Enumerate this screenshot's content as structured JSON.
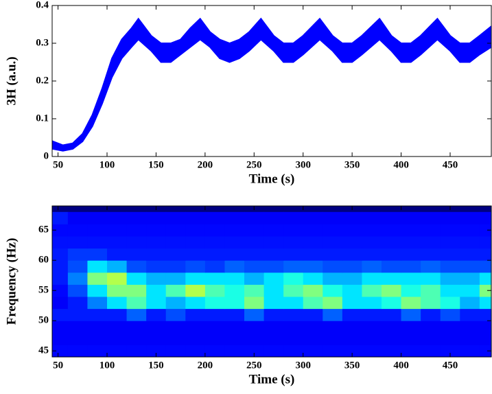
{
  "chart_data": [
    {
      "type": "band",
      "ylabel": "3H (a.u.)",
      "xlabel": "Time (s)",
      "color": "#0000ff",
      "x": [
        45,
        55,
        65,
        75,
        85,
        95,
        105,
        115,
        125,
        132,
        145,
        155,
        165,
        175,
        185,
        195,
        205,
        215,
        225,
        235,
        245,
        257,
        270,
        280,
        290,
        300,
        317,
        330,
        340,
        350,
        360,
        378,
        390,
        400,
        410,
        420,
        437,
        450,
        460,
        470,
        480,
        492
      ],
      "lower": [
        0.02,
        0.015,
        0.02,
        0.04,
        0.08,
        0.14,
        0.21,
        0.26,
        0.29,
        0.31,
        0.28,
        0.25,
        0.25,
        0.27,
        0.29,
        0.31,
        0.29,
        0.26,
        0.25,
        0.26,
        0.28,
        0.31,
        0.28,
        0.25,
        0.25,
        0.27,
        0.31,
        0.28,
        0.25,
        0.25,
        0.27,
        0.31,
        0.28,
        0.25,
        0.25,
        0.27,
        0.31,
        0.28,
        0.25,
        0.25,
        0.27,
        0.29
      ],
      "upper": [
        0.04,
        0.03,
        0.035,
        0.06,
        0.11,
        0.18,
        0.26,
        0.31,
        0.34,
        0.365,
        0.32,
        0.3,
        0.3,
        0.31,
        0.34,
        0.365,
        0.33,
        0.31,
        0.3,
        0.31,
        0.33,
        0.365,
        0.32,
        0.3,
        0.3,
        0.32,
        0.365,
        0.32,
        0.3,
        0.3,
        0.32,
        0.365,
        0.32,
        0.3,
        0.3,
        0.32,
        0.365,
        0.32,
        0.3,
        0.3,
        0.32,
        0.345
      ],
      "xlim": [
        44,
        492
      ],
      "ylim": [
        0,
        0.4
      ],
      "xticks": [
        50,
        100,
        150,
        200,
        250,
        300,
        350,
        400,
        450
      ],
      "yticks": [
        0,
        0.1,
        0.2,
        0.3,
        0.4
      ]
    },
    {
      "type": "heatmap",
      "ylabel": "Frequency (Hz)",
      "xlabel": "Time (s)",
      "colormap": "jet",
      "x": [
        50,
        70,
        90,
        110,
        130,
        150,
        170,
        190,
        210,
        230,
        250,
        270,
        290,
        310,
        330,
        350,
        370,
        390,
        410,
        430,
        450,
        470,
        490
      ],
      "y": [
        45,
        47,
        49,
        51,
        53,
        55,
        57,
        59,
        61,
        63,
        65,
        67
      ],
      "values": [
        [
          0.13,
          0.13,
          0.13,
          0.13,
          0.13,
          0.13,
          0.13,
          0.13,
          0.13,
          0.13,
          0.13,
          0.13,
          0.13,
          0.13,
          0.13,
          0.13,
          0.13,
          0.13,
          0.13,
          0.13,
          0.13,
          0.13,
          0.13
        ],
        [
          0.12,
          0.12,
          0.12,
          0.12,
          0.12,
          0.12,
          0.12,
          0.12,
          0.12,
          0.12,
          0.12,
          0.12,
          0.12,
          0.12,
          0.12,
          0.12,
          0.12,
          0.12,
          0.12,
          0.12,
          0.12,
          0.12,
          0.12
        ],
        [
          0.12,
          0.12,
          0.12,
          0.12,
          0.12,
          0.12,
          0.12,
          0.12,
          0.12,
          0.12,
          0.12,
          0.12,
          0.12,
          0.12,
          0.12,
          0.12,
          0.12,
          0.12,
          0.12,
          0.12,
          0.12,
          0.12,
          0.12
        ],
        [
          0.15,
          0.15,
          0.15,
          0.15,
          0.22,
          0.15,
          0.2,
          0.15,
          0.15,
          0.15,
          0.22,
          0.15,
          0.15,
          0.15,
          0.22,
          0.15,
          0.15,
          0.15,
          0.22,
          0.15,
          0.2,
          0.15,
          0.15
        ],
        [
          0.12,
          0.15,
          0.25,
          0.35,
          0.45,
          0.35,
          0.3,
          0.35,
          0.4,
          0.4,
          0.5,
          0.35,
          0.35,
          0.45,
          0.5,
          0.35,
          0.35,
          0.4,
          0.5,
          0.45,
          0.4,
          0.3,
          0.35
        ],
        [
          0.13,
          0.2,
          0.35,
          0.5,
          0.5,
          0.35,
          0.45,
          0.55,
          0.45,
          0.4,
          0.45,
          0.35,
          0.45,
          0.5,
          0.4,
          0.35,
          0.45,
          0.5,
          0.4,
          0.45,
          0.35,
          0.35,
          0.5
        ],
        [
          0.15,
          0.25,
          0.5,
          0.55,
          0.35,
          0.3,
          0.3,
          0.35,
          0.35,
          0.35,
          0.3,
          0.35,
          0.4,
          0.35,
          0.3,
          0.3,
          0.35,
          0.35,
          0.35,
          0.35,
          0.3,
          0.3,
          0.35
        ],
        [
          0.15,
          0.2,
          0.35,
          0.3,
          0.2,
          0.18,
          0.18,
          0.2,
          0.18,
          0.22,
          0.2,
          0.2,
          0.22,
          0.22,
          0.2,
          0.2,
          0.22,
          0.2,
          0.2,
          0.22,
          0.2,
          0.2,
          0.2
        ],
        [
          0.15,
          0.18,
          0.18,
          0.15,
          0.15,
          0.15,
          0.15,
          0.15,
          0.15,
          0.15,
          0.15,
          0.15,
          0.15,
          0.15,
          0.15,
          0.15,
          0.15,
          0.15,
          0.15,
          0.15,
          0.15,
          0.15,
          0.15
        ],
        [
          0.14,
          0.14,
          0.14,
          0.14,
          0.14,
          0.14,
          0.14,
          0.14,
          0.14,
          0.14,
          0.14,
          0.14,
          0.14,
          0.14,
          0.14,
          0.14,
          0.14,
          0.14,
          0.14,
          0.14,
          0.14,
          0.14,
          0.14
        ],
        [
          0.13,
          0.13,
          0.13,
          0.13,
          0.13,
          0.13,
          0.13,
          0.13,
          0.13,
          0.13,
          0.13,
          0.13,
          0.13,
          0.13,
          0.13,
          0.13,
          0.13,
          0.13,
          0.13,
          0.13,
          0.13,
          0.13,
          0.13
        ],
        [
          0.15,
          0.12,
          0.12,
          0.12,
          0.12,
          0.12,
          0.12,
          0.12,
          0.12,
          0.12,
          0.12,
          0.12,
          0.12,
          0.12,
          0.12,
          0.12,
          0.12,
          0.12,
          0.12,
          0.12,
          0.12,
          0.12,
          0.12
        ]
      ],
      "xlim": [
        44,
        492
      ],
      "ylim": [
        44,
        69
      ],
      "xticks": [
        50,
        100,
        150,
        200,
        250,
        300,
        350,
        400,
        450
      ],
      "yticks": [
        45,
        50,
        55,
        60,
        65
      ]
    }
  ]
}
